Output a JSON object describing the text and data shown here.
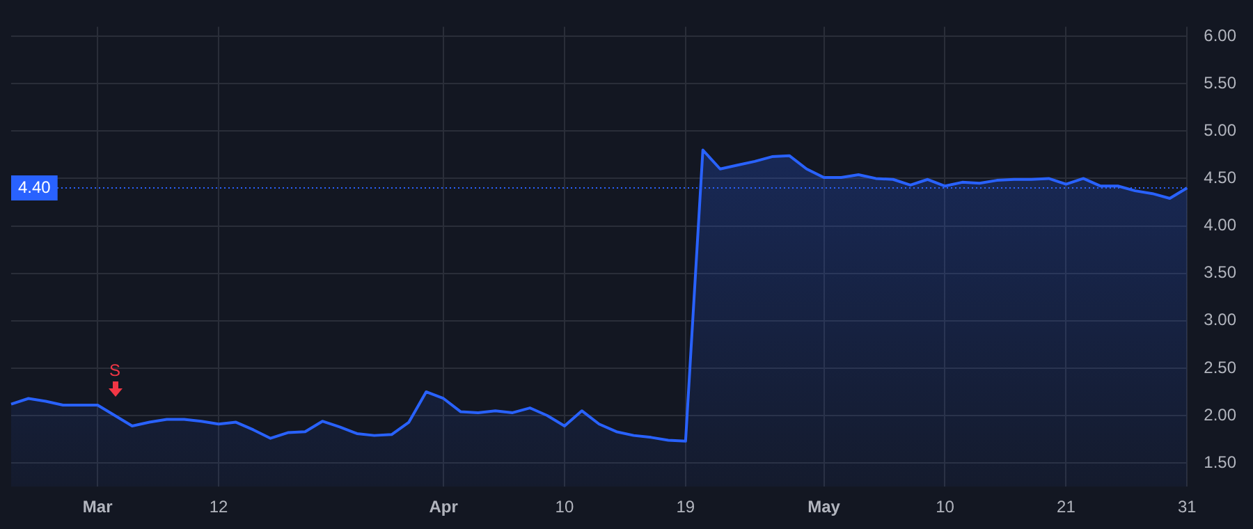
{
  "chart_data": {
    "type": "area",
    "categories": [
      null,
      null,
      null,
      null,
      null,
      "Mar",
      null,
      null,
      null,
      null,
      null,
      null,
      "12",
      null,
      null,
      null,
      null,
      null,
      null,
      null,
      null,
      null,
      null,
      null,
      null,
      "Apr",
      null,
      null,
      null,
      null,
      null,
      null,
      "10",
      null,
      null,
      null,
      null,
      null,
      null,
      "19",
      null,
      null,
      null,
      null,
      null,
      null,
      null,
      "May",
      null,
      null,
      null,
      null,
      null,
      null,
      "10",
      null,
      null,
      null,
      null,
      null,
      null,
      "21",
      null,
      null,
      null,
      null,
      null,
      null,
      "31"
    ],
    "series": [
      {
        "color": "#2962ff",
        "values": [
          2.12,
          2.18,
          2.15,
          2.11,
          2.11,
          2.11,
          2.0,
          1.89,
          1.93,
          1.96,
          1.96,
          1.94,
          1.91,
          1.93,
          1.85,
          1.76,
          1.82,
          1.83,
          1.94,
          1.88,
          1.81,
          1.79,
          1.8,
          1.93,
          2.25,
          2.18,
          2.04,
          2.03,
          2.05,
          2.03,
          2.08,
          2.0,
          1.89,
          2.05,
          1.91,
          1.83,
          1.79,
          1.77,
          1.74,
          1.73,
          4.8,
          4.6,
          4.64,
          4.68,
          4.73,
          4.74,
          4.6,
          4.51,
          4.51,
          4.54,
          4.5,
          4.49,
          4.43,
          4.49,
          4.42,
          4.46,
          4.45,
          4.48,
          4.49,
          4.49,
          4.5,
          4.44,
          4.5,
          4.42,
          4.42,
          4.37,
          4.34,
          4.29,
          4.4
        ]
      }
    ],
    "ylim": [
      1.25,
      6.1
    ],
    "yticks": [
      {
        "value": 1.5,
        "label": "1.50"
      },
      {
        "value": 2,
        "label": "2.00"
      },
      {
        "value": 2.5,
        "label": "2.50"
      },
      {
        "value": 3,
        "label": "3.00"
      },
      {
        "value": 3.5,
        "label": "3.50"
      },
      {
        "value": 4,
        "label": "4.00"
      },
      {
        "value": 4.5,
        "label": "4.50"
      },
      {
        "value": 5,
        "label": "5.00"
      },
      {
        "value": 5.5,
        "label": "5.50"
      },
      {
        "value": 6,
        "label": "6.00"
      }
    ],
    "ref_lines": [
      {
        "axis": "y",
        "value": 4.4,
        "label": "4.40",
        "color": "#2962ff",
        "line_style": "dotted"
      }
    ],
    "annotations": [
      "S"
    ],
    "grid": true,
    "legend": false
  }
}
